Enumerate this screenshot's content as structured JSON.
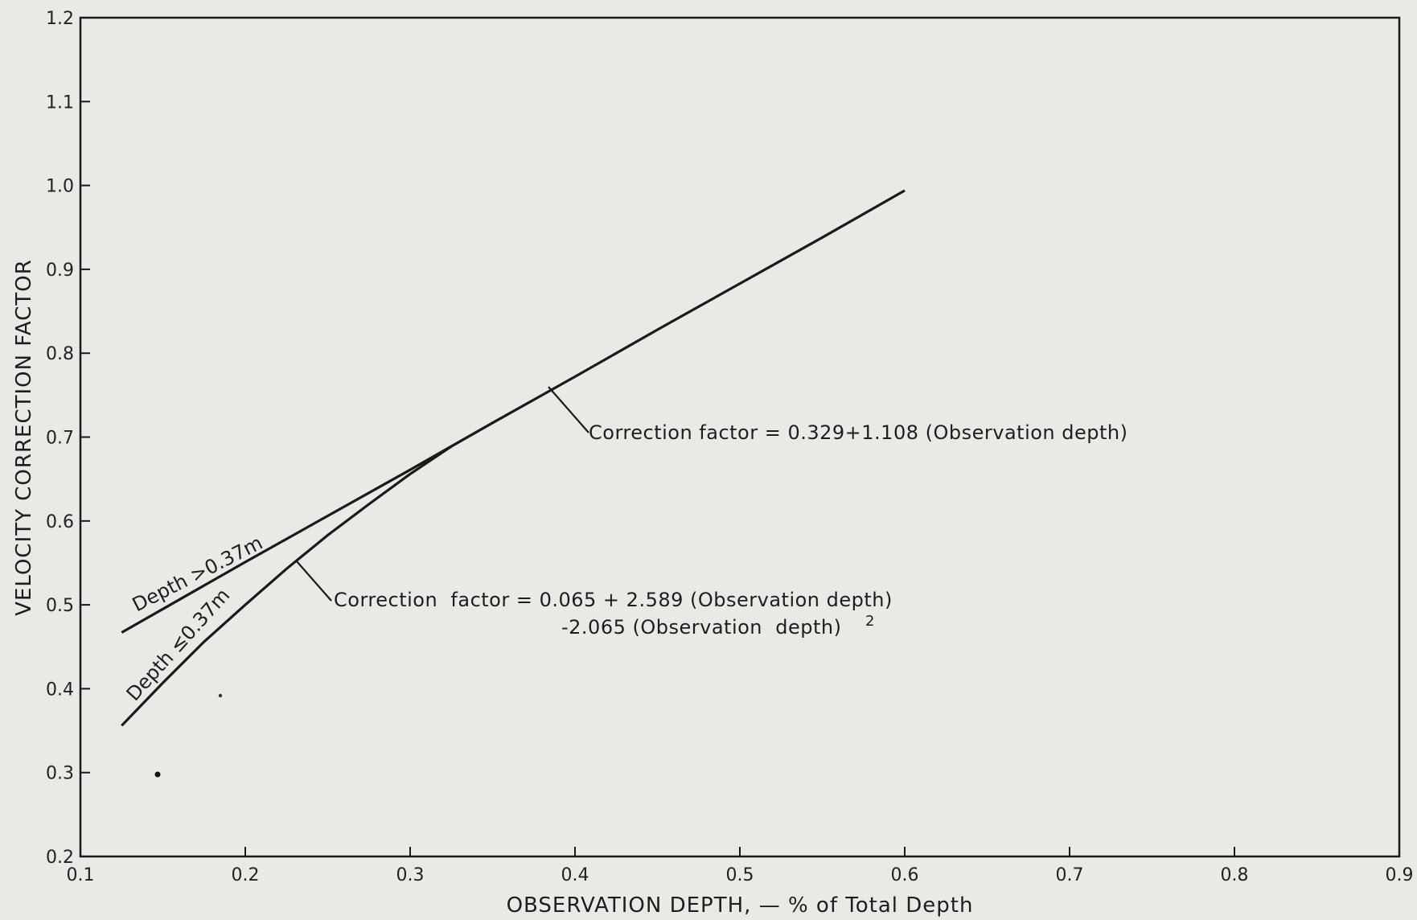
{
  "chart_data": {
    "type": "line",
    "xlabel": "OBSERVATION DEPTH, — % of Total Depth",
    "ylabel": "VELOCITY CORRECTION FACTOR",
    "xlim": [
      0.1,
      0.9
    ],
    "ylim": [
      0.2,
      1.2
    ],
    "xticks": [
      "0.1",
      "0.2",
      "0.3",
      "0.4",
      "0.5",
      "0.6",
      "0.7",
      "0.8",
      "0.9"
    ],
    "yticks": [
      "0.2",
      "0.3",
      "0.4",
      "0.5",
      "0.6",
      "0.7",
      "0.8",
      "0.9",
      "1.0",
      "1.1",
      "1.2"
    ],
    "grid": false,
    "series": [
      {
        "name": "Depth >0.37 m",
        "x": [
          0.125,
          0.15,
          0.2,
          0.25,
          0.3,
          0.35,
          0.4,
          0.45,
          0.5,
          0.55,
          0.6
        ],
        "y": [
          0.467,
          0.495,
          0.551,
          0.606,
          0.661,
          0.717,
          0.772,
          0.828,
          0.883,
          0.938,
          0.994
        ]
      },
      {
        "name": "Depth ≤0.37 m",
        "x": [
          0.125,
          0.15,
          0.175,
          0.2,
          0.225,
          0.25,
          0.275,
          0.3,
          0.325
        ],
        "y": [
          0.356,
          0.407,
          0.456,
          0.5,
          0.543,
          0.583,
          0.62,
          0.656,
          0.689
        ]
      }
    ],
    "annotations": {
      "upper": "Correction factor = 0.329+1.108 (Observation depth)",
      "lower_line1": "Correction  factor = 0.065 + 2.589 (Observation depth)",
      "lower_line2": "-2.065 (Observation  depth)",
      "lower_exponent": "2"
    },
    "curve_labels": {
      "upper": "Depth >0.37m",
      "lower": "Depth ≤0.37m"
    }
  }
}
